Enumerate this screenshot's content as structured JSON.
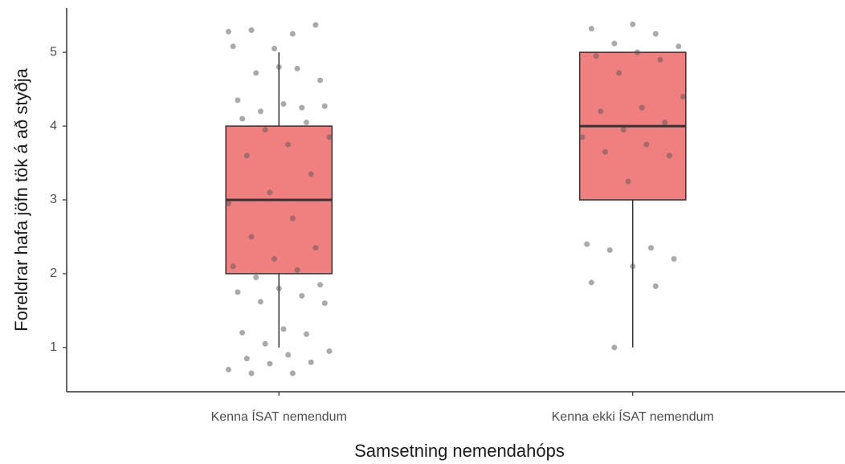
{
  "chart_data": {
    "type": "box",
    "x_label": "Samsetning nemendahóps",
    "y_label": "Foreldrar hafa jöfn tök á að styðja",
    "categories": [
      "Kenna ÍSAT nemendum",
      "Kenna ekki ÍSAT nemendum"
    ],
    "boxes": [
      {
        "whislo": 1,
        "q1": 2,
        "med": 3,
        "q3": 4,
        "whishi": 5
      },
      {
        "whislo": 1,
        "q1": 3,
        "med": 4,
        "q3": 5,
        "whishi": 5
      }
    ],
    "points": [
      [
        5.28,
        5.25,
        5.3,
        5.37,
        5.05,
        5.08,
        4.78,
        4.72,
        4.62,
        4.8,
        4.35,
        4.25,
        4.2,
        4.27,
        4.3,
        4.1,
        4.05,
        3.95,
        3.85,
        3.75,
        3.6,
        3.35,
        3.1,
        2.95,
        2.75,
        2.5,
        2.35,
        2.2,
        2.1,
        2.05,
        1.95,
        1.85,
        1.8,
        1.75,
        1.7,
        1.62,
        1.6,
        1.25,
        1.2,
        1.18,
        1.05,
        0.95,
        0.9,
        0.85,
        0.8,
        0.78,
        0.7,
        0.65,
        0.65
      ],
      [
        5.38,
        5.32,
        5.25,
        5.12,
        5.08,
        5.0,
        4.95,
        4.9,
        4.72,
        4.4,
        4.25,
        4.2,
        4.05,
        3.95,
        3.85,
        3.75,
        3.65,
        3.6,
        3.25,
        2.4,
        2.35,
        2.32,
        2.2,
        2.1,
        1.88,
        1.83,
        1.0
      ]
    ],
    "color": "#f08080",
    "point_color": "#555555",
    "ylim": [
      0.4,
      5.6
    ],
    "yticks": [
      1,
      2,
      3,
      4,
      5
    ]
  }
}
